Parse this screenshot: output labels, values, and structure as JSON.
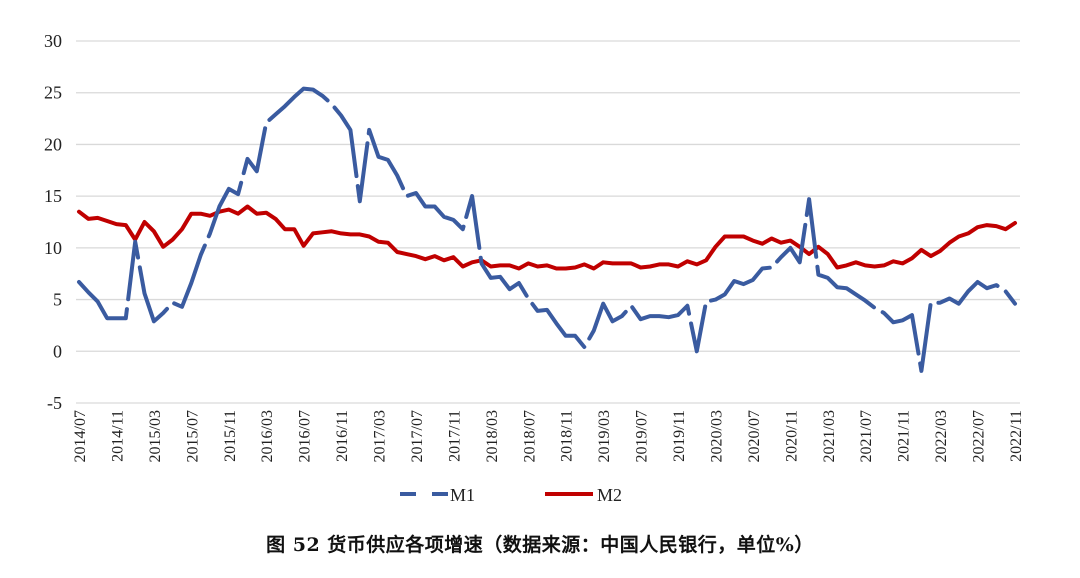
{
  "caption": "图 52 货币供应各项增速（数据来源：中国人民银行，单位%）",
  "legend": {
    "m1_label": "M1",
    "m2_label": "M2"
  },
  "colors": {
    "m1": "#3A5BA0",
    "m2": "#C00000",
    "grid": "#D9D9D9",
    "text": "#222222"
  },
  "chart_data": {
    "type": "line",
    "title": "图 52 货币供应各项增速（数据来源：中国人民银行，单位%）",
    "xlabel": "",
    "ylabel": "%",
    "ylim": [
      -5,
      30
    ],
    "yticks": [
      -5,
      0,
      5,
      10,
      15,
      20,
      25,
      30
    ],
    "grid": true,
    "legend_position": "bottom",
    "xtick_labels": [
      "2014/07",
      "2014/11",
      "2015/03",
      "2015/07",
      "2015/11",
      "2016/03",
      "2016/07",
      "2016/11",
      "2017/03",
      "2017/07",
      "2017/11",
      "2018/03",
      "2018/07",
      "2018/11",
      "2019/03",
      "2019/07",
      "2019/11",
      "2020/03",
      "2020/07",
      "2020/11",
      "2021/03",
      "2021/07",
      "2021/11",
      "2022/03",
      "2022/07",
      "2022/11"
    ],
    "x": [
      "2014/07",
      "2014/08",
      "2014/09",
      "2014/10",
      "2014/11",
      "2014/12",
      "2015/01",
      "2015/02",
      "2015/03",
      "2015/04",
      "2015/05",
      "2015/06",
      "2015/07",
      "2015/08",
      "2015/09",
      "2015/10",
      "2015/11",
      "2015/12",
      "2016/01",
      "2016/02",
      "2016/03",
      "2016/04",
      "2016/05",
      "2016/06",
      "2016/07",
      "2016/08",
      "2016/09",
      "2016/10",
      "2016/11",
      "2016/12",
      "2017/01",
      "2017/02",
      "2017/03",
      "2017/04",
      "2017/05",
      "2017/06",
      "2017/07",
      "2017/08",
      "2017/09",
      "2017/10",
      "2017/11",
      "2017/12",
      "2018/01",
      "2018/02",
      "2018/03",
      "2018/04",
      "2018/05",
      "2018/06",
      "2018/07",
      "2018/08",
      "2018/09",
      "2018/10",
      "2018/11",
      "2018/12",
      "2019/01",
      "2019/02",
      "2019/03",
      "2019/04",
      "2019/05",
      "2019/06",
      "2019/07",
      "2019/08",
      "2019/09",
      "2019/10",
      "2019/11",
      "2019/12",
      "2020/01",
      "2020/02",
      "2020/03",
      "2020/04",
      "2020/05",
      "2020/06",
      "2020/07",
      "2020/08",
      "2020/09",
      "2020/10",
      "2020/11",
      "2020/12",
      "2021/01",
      "2021/02",
      "2021/03",
      "2021/04",
      "2021/05",
      "2021/06",
      "2021/07",
      "2021/08",
      "2021/09",
      "2021/10",
      "2021/11",
      "2021/12",
      "2022/01",
      "2022/02",
      "2022/03",
      "2022/04",
      "2022/05",
      "2022/06",
      "2022/07",
      "2022/08",
      "2022/09",
      "2022/10",
      "2022/11"
    ],
    "series": [
      {
        "name": "M1",
        "style": "dashed",
        "color": "#3A5BA0",
        "values": [
          6.7,
          5.7,
          4.8,
          3.2,
          3.2,
          3.2,
          10.6,
          5.6,
          2.9,
          3.7,
          4.7,
          4.3,
          6.6,
          9.3,
          11.4,
          14.0,
          15.7,
          15.2,
          18.6,
          17.4,
          22.1,
          22.9,
          23.7,
          24.6,
          25.4,
          25.3,
          24.7,
          23.9,
          22.8,
          21.4,
          14.5,
          21.4,
          18.8,
          18.5,
          17.0,
          15.0,
          15.3,
          14.0,
          14.0,
          13.0,
          12.7,
          11.8,
          15.0,
          8.5,
          7.1,
          7.2,
          6.0,
          6.6,
          5.1,
          3.9,
          4.0,
          2.7,
          1.5,
          1.5,
          0.4,
          2.0,
          4.6,
          2.9,
          3.4,
          4.4,
          3.1,
          3.4,
          3.4,
          3.3,
          3.5,
          4.4,
          0.0,
          4.8,
          5.0,
          5.5,
          6.8,
          6.5,
          6.9,
          8.0,
          8.1,
          9.1,
          10.0,
          8.6,
          14.7,
          7.4,
          7.1,
          6.2,
          6.1,
          5.5,
          4.9,
          4.2,
          3.7,
          2.8,
          3.0,
          3.5,
          -1.9,
          4.7,
          4.7,
          5.1,
          4.6,
          5.8,
          6.7,
          6.1,
          6.4,
          5.8,
          4.6
        ]
      },
      {
        "name": "M2",
        "style": "solid",
        "color": "#C00000",
        "values": [
          13.5,
          12.8,
          12.9,
          12.6,
          12.3,
          12.2,
          10.8,
          12.5,
          11.6,
          10.1,
          10.8,
          11.8,
          13.3,
          13.3,
          13.1,
          13.5,
          13.7,
          13.3,
          14.0,
          13.3,
          13.4,
          12.8,
          11.8,
          11.8,
          10.2,
          11.4,
          11.5,
          11.6,
          11.4,
          11.3,
          11.3,
          11.1,
          10.6,
          10.5,
          9.6,
          9.4,
          9.2,
          8.9,
          9.2,
          8.8,
          9.1,
          8.2,
          8.6,
          8.8,
          8.2,
          8.3,
          8.3,
          8.0,
          8.5,
          8.2,
          8.3,
          8.0,
          8.0,
          8.1,
          8.4,
          8.0,
          8.6,
          8.5,
          8.5,
          8.5,
          8.1,
          8.2,
          8.4,
          8.4,
          8.2,
          8.7,
          8.4,
          8.8,
          10.1,
          11.1,
          11.1,
          11.1,
          10.7,
          10.4,
          10.9,
          10.5,
          10.7,
          10.1,
          9.4,
          10.1,
          9.4,
          8.1,
          8.3,
          8.6,
          8.3,
          8.2,
          8.3,
          8.7,
          8.5,
          9.0,
          9.8,
          9.2,
          9.7,
          10.5,
          11.1,
          11.4,
          12.0,
          12.2,
          12.1,
          11.8,
          12.4
        ]
      }
    ]
  }
}
